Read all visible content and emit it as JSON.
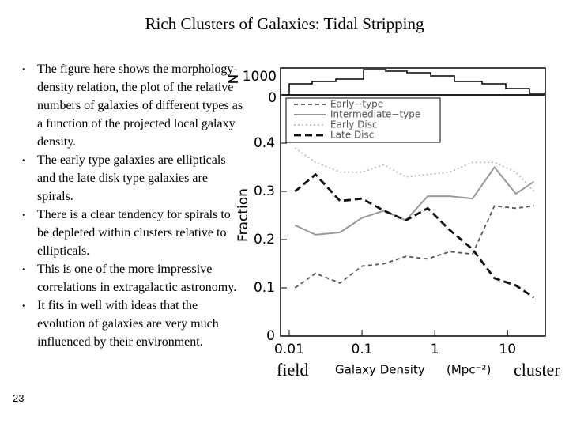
{
  "slide": {
    "title": "Rich Clusters of Galaxies: Tidal Stripping",
    "bullets": [
      "The figure here shows the morphology-density relation, the plot of the relative numbers of galaxies of different types as a function of the projected local galaxy density.",
      "The early type galaxies are ellipticals and the late disk type galaxies are spirals.",
      "There is a clear tendency for spirals to be depleted within clusters relative to ellipticals.",
      "This is one of the more impressive correlations in extragalactic astronomy.",
      "It fits in well with ideas that the evolution of galaxies are very much influenced by their environment."
    ],
    "page_number": "23",
    "field_label": "field",
    "cluster_label": "cluster"
  },
  "chart_data": {
    "type": "line",
    "xlabel": "Galaxy Density",
    "xlabel_unit": "(Mpc⁻²)",
    "ylabel": "Fraction",
    "top_panel": {
      "ylabel": "N",
      "tick_top": "1000",
      "tick_bottom": "0"
    },
    "x": [
      0.012,
      0.023,
      0.05,
      0.1,
      0.2,
      0.4,
      0.8,
      1.6,
      3.3,
      6.6,
      13,
      23
    ],
    "xlim": [
      0.0076,
      33
    ],
    "xscale": "log",
    "xticks": [
      0.01,
      0.1,
      1,
      10
    ],
    "ylim": [
      0,
      0.5
    ],
    "yticks": [
      0,
      0.1,
      0.2,
      0.3,
      0.4
    ],
    "series": [
      {
        "name": "Early−type",
        "color": "#555555",
        "style": "dashed",
        "values": [
          0.1,
          0.13,
          0.11,
          0.145,
          0.15,
          0.165,
          0.16,
          0.175,
          0.17,
          0.27,
          0.265,
          0.27
        ]
      },
      {
        "name": "Intermediate−type",
        "color": "#999999",
        "style": "solid",
        "values": [
          0.23,
          0.21,
          0.215,
          0.245,
          0.26,
          0.24,
          0.29,
          0.29,
          0.285,
          0.35,
          0.295,
          0.32
        ]
      },
      {
        "name": "Early Disc",
        "color": "#bbbbbb",
        "style": "dotted",
        "values": [
          0.39,
          0.36,
          0.34,
          0.34,
          0.355,
          0.33,
          0.335,
          0.34,
          0.36,
          0.36,
          0.34,
          0.3
        ]
      },
      {
        "name": "Late Disc",
        "color": "#111111",
        "style": "longdash",
        "values": [
          0.3,
          0.335,
          0.28,
          0.285,
          0.26,
          0.24,
          0.265,
          0.22,
          0.18,
          0.12,
          0.105,
          0.08
        ]
      }
    ]
  }
}
